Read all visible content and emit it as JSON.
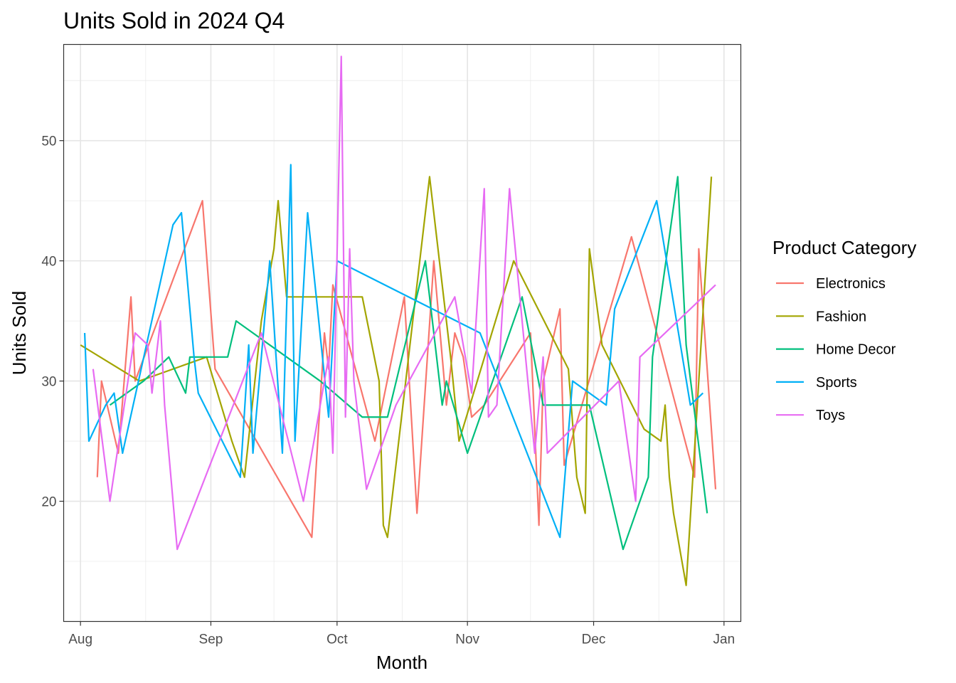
{
  "chart_data": {
    "type": "line",
    "title": "Units Sold in 2024 Q4",
    "xlabel": "Month",
    "ylabel": "Units Sold",
    "x_axis": {
      "type": "date",
      "range": [
        "2024-07-28",
        "2025-01-05"
      ],
      "ticks": [
        {
          "date": "2024-08-01",
          "label": "Aug"
        },
        {
          "date": "2024-09-01",
          "label": "Sep"
        },
        {
          "date": "2024-10-01",
          "label": "Oct"
        },
        {
          "date": "2024-11-01",
          "label": "Nov"
        },
        {
          "date": "2024-12-01",
          "label": "Dec"
        },
        {
          "date": "2025-01-01",
          "label": "Jan"
        }
      ]
    },
    "y_axis": {
      "range": [
        10,
        58
      ],
      "ticks": [
        20,
        30,
        40,
        50
      ],
      "minor_ticks": [
        15,
        25,
        35,
        45,
        55
      ]
    },
    "grid": true,
    "legend": {
      "title": "Product Category",
      "position": "right"
    },
    "series": [
      {
        "name": "Electronics",
        "color": "#F8766D",
        "points": [
          [
            "2024-08-05",
            22
          ],
          [
            "2024-08-06",
            30
          ],
          [
            "2024-08-10",
            24
          ],
          [
            "2024-08-13",
            37
          ],
          [
            "2024-08-14",
            30
          ],
          [
            "2024-08-30",
            45
          ],
          [
            "2024-09-02",
            31
          ],
          [
            "2024-09-25",
            17
          ],
          [
            "2024-09-28",
            34
          ],
          [
            "2024-09-29",
            31
          ],
          [
            "2024-09-30",
            38
          ],
          [
            "2024-10-10",
            25
          ],
          [
            "2024-10-17",
            37
          ],
          [
            "2024-10-20",
            19
          ],
          [
            "2024-10-24",
            40
          ],
          [
            "2024-10-27",
            28
          ],
          [
            "2024-10-29",
            34
          ],
          [
            "2024-10-31",
            32
          ],
          [
            "2024-11-02",
            27
          ],
          [
            "2024-11-05",
            28
          ],
          [
            "2024-11-16",
            34
          ],
          [
            "2024-11-18",
            18
          ],
          [
            "2024-11-19",
            30
          ],
          [
            "2024-11-23",
            36
          ],
          [
            "2024-11-24",
            23
          ],
          [
            "2024-12-10",
            42
          ],
          [
            "2024-12-25",
            22
          ],
          [
            "2024-12-26",
            41
          ],
          [
            "2024-12-30",
            21
          ]
        ]
      },
      {
        "name": "Fashion",
        "color": "#A3A500",
        "points": [
          [
            "2024-08-01",
            33
          ],
          [
            "2024-08-15",
            30
          ],
          [
            "2024-08-31",
            32
          ],
          [
            "2024-09-06",
            25
          ],
          [
            "2024-09-09",
            22
          ],
          [
            "2024-09-13",
            35
          ],
          [
            "2024-09-16",
            41
          ],
          [
            "2024-09-17",
            45
          ],
          [
            "2024-09-19",
            37
          ],
          [
            "2024-10-07",
            37
          ],
          [
            "2024-10-11",
            30
          ],
          [
            "2024-10-12",
            18
          ],
          [
            "2024-10-13",
            17
          ],
          [
            "2024-10-23",
            47
          ],
          [
            "2024-10-28",
            32
          ],
          [
            "2024-10-30",
            25
          ],
          [
            "2024-11-12",
            40
          ],
          [
            "2024-11-25",
            31
          ],
          [
            "2024-11-27",
            22
          ],
          [
            "2024-11-29",
            19
          ],
          [
            "2024-11-30",
            41
          ],
          [
            "2024-12-03",
            33
          ],
          [
            "2024-12-13",
            26
          ],
          [
            "2024-12-17",
            25
          ],
          [
            "2024-12-18",
            28
          ],
          [
            "2024-12-19",
            22
          ],
          [
            "2024-12-20",
            19
          ],
          [
            "2024-12-23",
            13
          ],
          [
            "2024-12-29",
            47
          ]
        ]
      },
      {
        "name": "Home Decor",
        "color": "#00BF7D",
        "points": [
          [
            "2024-08-08",
            28
          ],
          [
            "2024-08-16",
            30
          ],
          [
            "2024-08-22",
            32
          ],
          [
            "2024-08-26",
            29
          ],
          [
            "2024-08-27",
            32
          ],
          [
            "2024-09-05",
            32
          ],
          [
            "2024-09-07",
            35
          ],
          [
            "2024-09-27",
            30
          ],
          [
            "2024-10-07",
            27
          ],
          [
            "2024-10-13",
            27
          ],
          [
            "2024-10-22",
            40
          ],
          [
            "2024-10-26",
            28
          ],
          [
            "2024-10-27",
            30
          ],
          [
            "2024-11-01",
            24
          ],
          [
            "2024-11-14",
            37
          ],
          [
            "2024-11-19",
            28
          ],
          [
            "2024-11-30",
            28
          ],
          [
            "2024-12-08",
            16
          ],
          [
            "2024-12-14",
            22
          ],
          [
            "2024-12-15",
            32
          ],
          [
            "2024-12-21",
            47
          ],
          [
            "2024-12-23",
            33
          ],
          [
            "2024-12-28",
            19
          ]
        ]
      },
      {
        "name": "Sports",
        "color": "#00B0F6",
        "points": [
          [
            "2024-08-02",
            34
          ],
          [
            "2024-08-03",
            25
          ],
          [
            "2024-08-07",
            28
          ],
          [
            "2024-08-09",
            29
          ],
          [
            "2024-08-11",
            24
          ],
          [
            "2024-08-23",
            43
          ],
          [
            "2024-08-25",
            44
          ],
          [
            "2024-08-28",
            32
          ],
          [
            "2024-08-29",
            29
          ],
          [
            "2024-09-08",
            22
          ],
          [
            "2024-09-10",
            33
          ],
          [
            "2024-09-11",
            24
          ],
          [
            "2024-09-15",
            40
          ],
          [
            "2024-09-18",
            24
          ],
          [
            "2024-09-20",
            48
          ],
          [
            "2024-09-21",
            25
          ],
          [
            "2024-09-24",
            44
          ],
          [
            "2024-09-29",
            27
          ],
          [
            "2024-10-01",
            40
          ],
          [
            "2024-11-04",
            34
          ],
          [
            "2024-11-23",
            17
          ],
          [
            "2024-11-26",
            30
          ],
          [
            "2024-12-04",
            28
          ],
          [
            "2024-12-06",
            36
          ],
          [
            "2024-12-16",
            45
          ],
          [
            "2024-12-24",
            28
          ],
          [
            "2024-12-27",
            29
          ]
        ]
      },
      {
        "name": "Toys",
        "color": "#E76BF3",
        "points": [
          [
            "2024-08-04",
            31
          ],
          [
            "2024-08-08",
            20
          ],
          [
            "2024-08-14",
            34
          ],
          [
            "2024-08-17",
            33
          ],
          [
            "2024-08-18",
            29
          ],
          [
            "2024-08-20",
            35
          ],
          [
            "2024-08-21",
            28
          ],
          [
            "2024-08-24",
            16
          ],
          [
            "2024-09-13",
            34
          ],
          [
            "2024-09-23",
            20
          ],
          [
            "2024-09-29",
            32
          ],
          [
            "2024-09-30",
            24
          ],
          [
            "2024-10-02",
            57
          ],
          [
            "2024-10-03",
            27
          ],
          [
            "2024-10-04",
            41
          ],
          [
            "2024-10-05",
            30
          ],
          [
            "2024-10-08",
            21
          ],
          [
            "2024-10-15",
            28
          ],
          [
            "2024-10-29",
            37
          ],
          [
            "2024-11-02",
            29
          ],
          [
            "2024-11-05",
            46
          ],
          [
            "2024-11-06",
            27
          ],
          [
            "2024-11-08",
            28
          ],
          [
            "2024-11-11",
            46
          ],
          [
            "2024-11-17",
            24
          ],
          [
            "2024-11-19",
            32
          ],
          [
            "2024-11-20",
            24
          ],
          [
            "2024-12-07",
            30
          ],
          [
            "2024-12-11",
            20
          ],
          [
            "2024-12-12",
            32
          ],
          [
            "2024-12-30",
            38
          ]
        ]
      }
    ]
  }
}
